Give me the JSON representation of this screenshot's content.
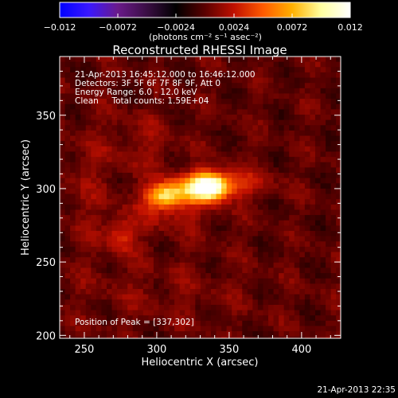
{
  "colorbar": {
    "min": -0.012,
    "max": 0.012,
    "tick_labels": [
      "−0.012",
      "−0.0072",
      "−0.0024",
      "0.0024",
      "0.0072",
      "0.012"
    ],
    "unit_label": "(photons cm⁻² s⁻¹ asec⁻²)"
  },
  "chart_data": {
    "type": "heatmap",
    "title": "Reconstructed RHESSI Image",
    "xlabel": "Heliocentric X (arcsec)",
    "ylabel": "Heliocentric Y (arcsec)",
    "xlim": [
      233,
      427
    ],
    "ylim": [
      198,
      390
    ],
    "x_ticks": [
      250,
      300,
      350,
      400
    ],
    "y_ticks": [
      200,
      250,
      300,
      350
    ],
    "peak": {
      "x": 337,
      "y": 302
    },
    "colormap": [
      "#0000ff",
      "#3a18ff",
      "#6a1a8a",
      "#3a0e44",
      "#000000",
      "#5a0000",
      "#c01000",
      "#ff5a00",
      "#ffb000",
      "#ffffa0",
      "#ffffff"
    ],
    "annotations": [
      "21-Apr-2013 16:45:12.000 to 16:46:12.000",
      "Detectors: 3F 5F 6F 7F 8F 9F, Att 0",
      "Energy Range: 6.0 - 12.0 keV",
      "Clean     Total counts: 1.59E+04"
    ],
    "peak_label": "Position of Peak = [337,302]"
  },
  "footer": {
    "timestamp": "21-Apr-2013 22:35"
  }
}
